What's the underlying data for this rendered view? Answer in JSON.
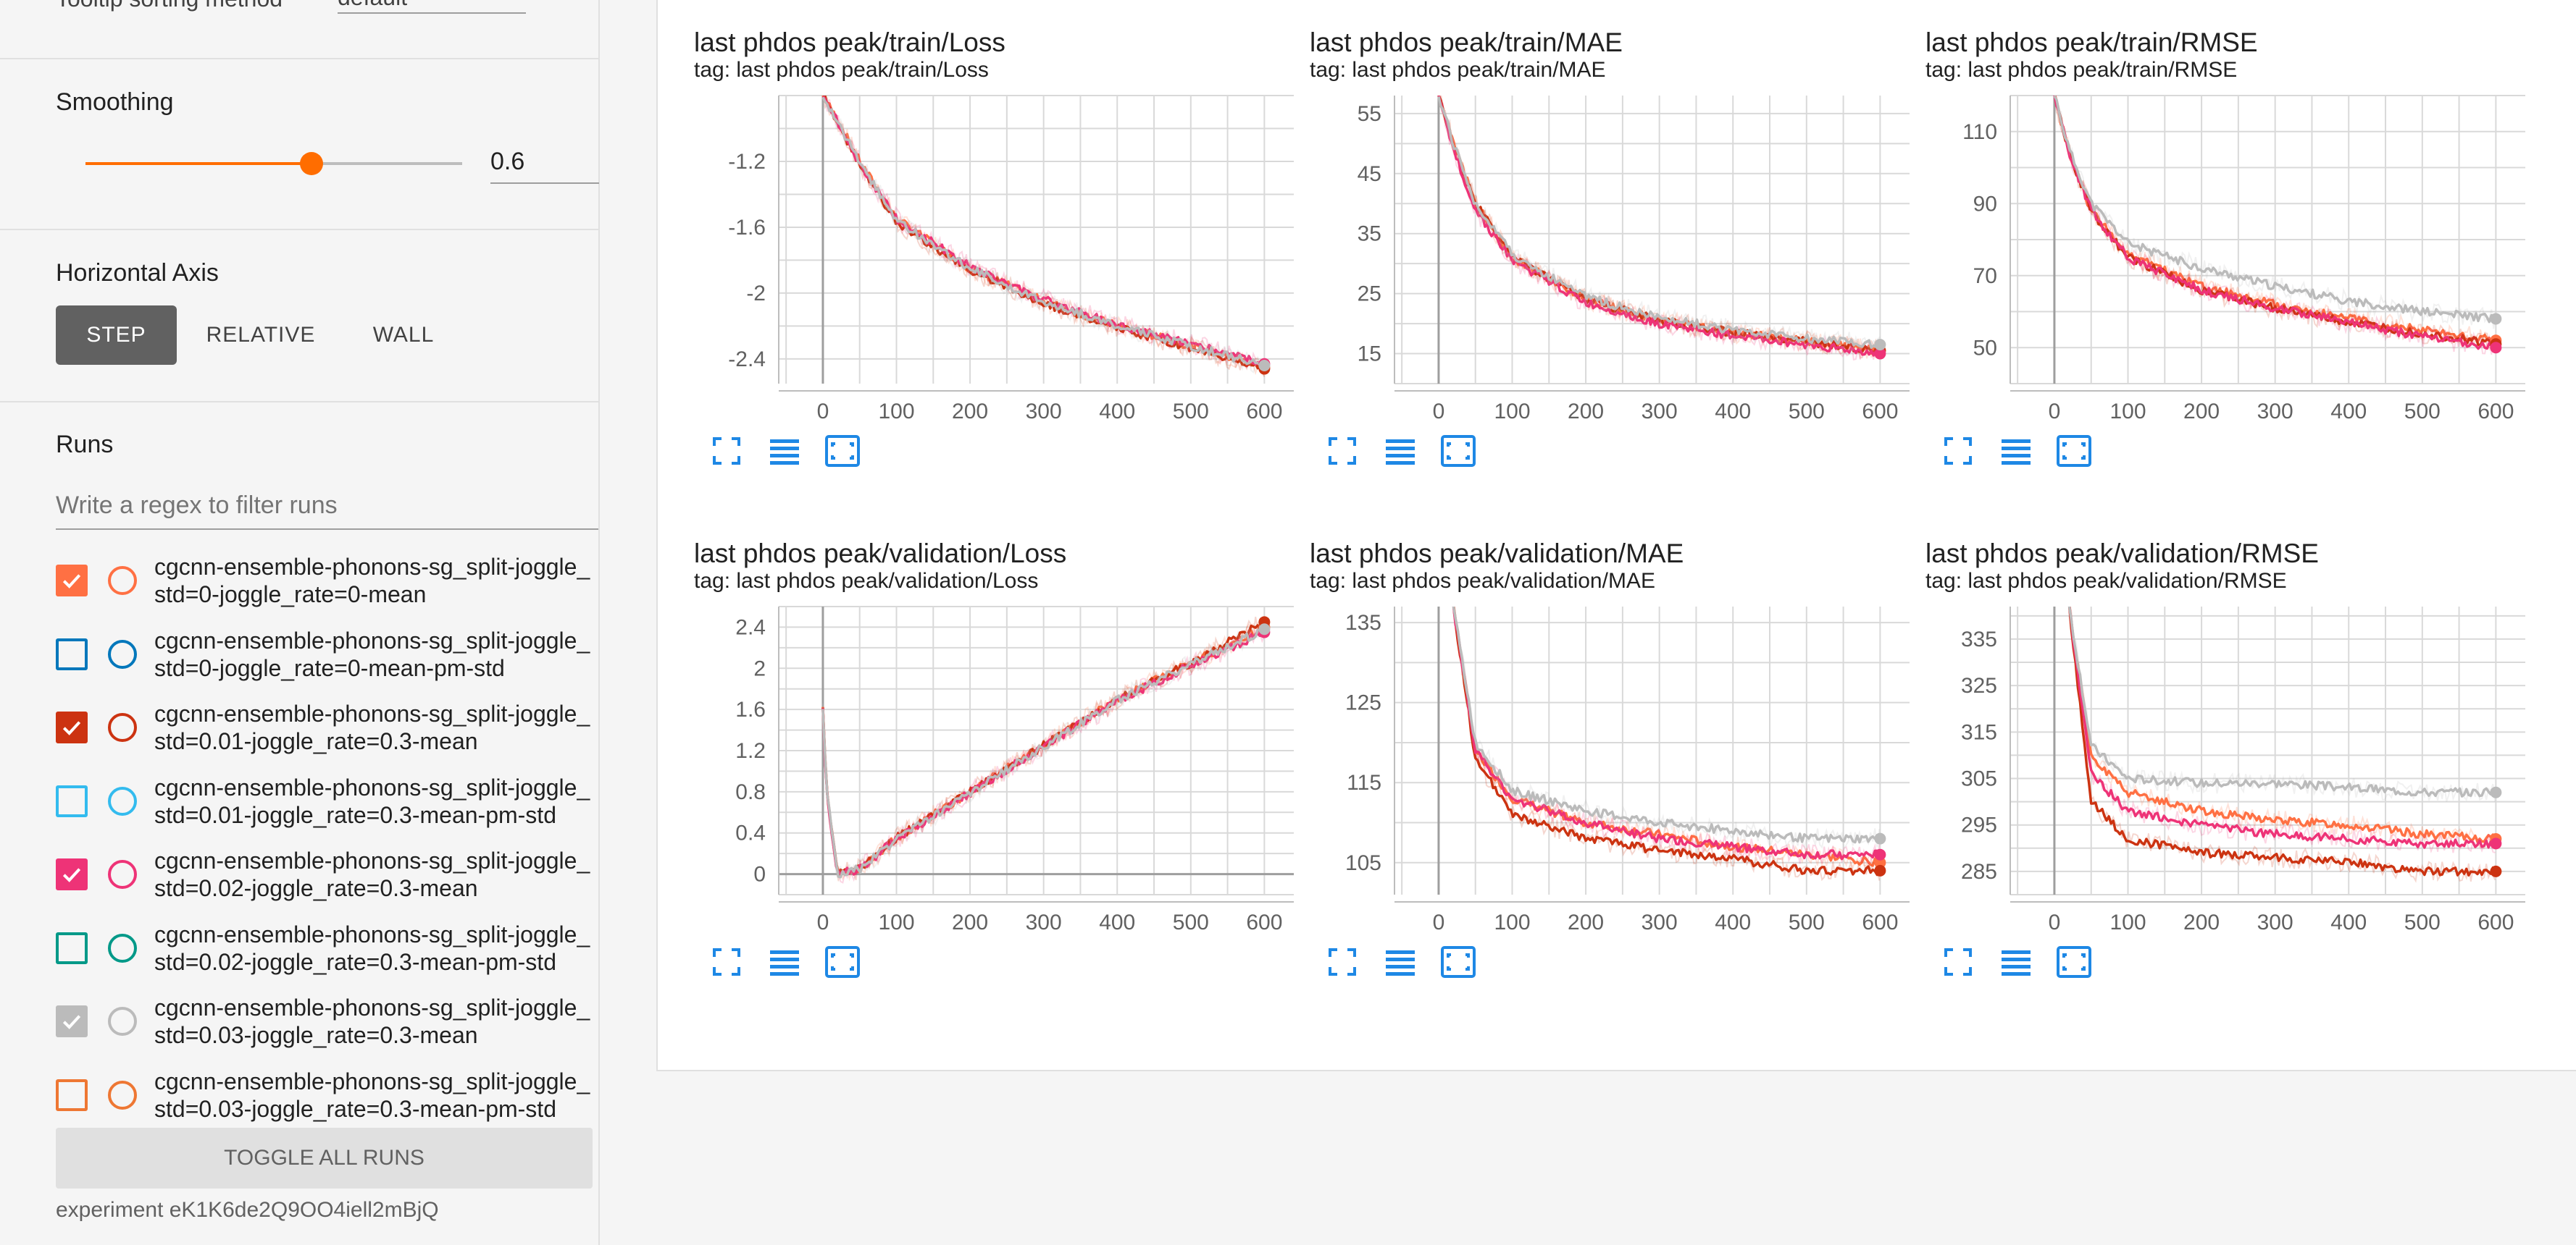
{
  "sidebar": {
    "tooltip_sorting": {
      "label": "Tooltip sorting method",
      "value": "default"
    },
    "smoothing": {
      "label": "Smoothing",
      "value": "0.6",
      "fraction": 0.6
    },
    "horizontal_axis": {
      "label": "Horizontal Axis",
      "options": [
        "STEP",
        "RELATIVE",
        "WALL"
      ],
      "selected": "STEP"
    },
    "runs": {
      "label": "Runs",
      "filter_placeholder": "Write a regex to filter runs",
      "items": [
        {
          "line1": "cgcnn-ensemble-phonons-sg_split-joggle_",
          "line2": "std=0-joggle_rate=0-mean",
          "checked": true,
          "color": "#ff7043"
        },
        {
          "line1": "cgcnn-ensemble-phonons-sg_split-joggle_",
          "line2": "std=0-joggle_rate=0-mean-pm-std",
          "checked": false,
          "color": "#0077bb"
        },
        {
          "line1": "cgcnn-ensemble-phonons-sg_split-joggle_",
          "line2": "std=0.01-joggle_rate=0.3-mean",
          "checked": true,
          "color": "#cc3311"
        },
        {
          "line1": "cgcnn-ensemble-phonons-sg_split-joggle_",
          "line2": "std=0.01-joggle_rate=0.3-mean-pm-std",
          "checked": false,
          "color": "#33bbee"
        },
        {
          "line1": "cgcnn-ensemble-phonons-sg_split-joggle_",
          "line2": "std=0.02-joggle_rate=0.3-mean",
          "checked": true,
          "color": "#ee3377"
        },
        {
          "line1": "cgcnn-ensemble-phonons-sg_split-joggle_",
          "line2": "std=0.02-joggle_rate=0.3-mean-pm-std",
          "checked": false,
          "color": "#009988"
        },
        {
          "line1": "cgcnn-ensemble-phonons-sg_split-joggle_",
          "line2": "std=0.03-joggle_rate=0.3-mean",
          "checked": true,
          "color": "#bbbbbb"
        },
        {
          "line1": "cgcnn-ensemble-phonons-sg_split-joggle_",
          "line2": "std=0.03-joggle_rate=0.3-mean-pm-std",
          "checked": false,
          "color": "#ee7733"
        }
      ]
    },
    "toggle_all_label": "TOGGLE ALL RUNS",
    "experiment": "experiment eK1K6de2Q9OO4iell2mBjQ"
  },
  "icons": {
    "fullscreen": "fullscreen-icon",
    "log_scale": "list-icon",
    "fit_domain": "fit-domain-icon"
  },
  "colors": {
    "accent": "#ff6d00",
    "icon_blue": "#1e88e5"
  },
  "chart_data": [
    {
      "title": "last phdos peak/train/Loss",
      "tag": "tag: last phdos peak/train/Loss",
      "type": "line",
      "xlim": [
        -60,
        640
      ],
      "ylim": [
        -2.55,
        -0.8
      ],
      "xticks": [
        0,
        100,
        200,
        300,
        400,
        500,
        600
      ],
      "yticks": [
        -1.2,
        -1.6,
        -2,
        -2.4
      ],
      "series": [
        {
          "color": "#ff7043",
          "x": [
            0,
            20,
            50,
            100,
            200,
            300,
            400,
            500,
            600
          ],
          "y": [
            -0.8,
            -0.95,
            -1.2,
            -1.55,
            -1.85,
            -2.05,
            -2.2,
            -2.32,
            -2.45
          ]
        },
        {
          "color": "#cc3311",
          "x": [
            0,
            20,
            50,
            100,
            200,
            300,
            400,
            500,
            600
          ],
          "y": [
            -0.8,
            -0.97,
            -1.22,
            -1.57,
            -1.86,
            -2.06,
            -2.21,
            -2.33,
            -2.46
          ]
        },
        {
          "color": "#ee3377",
          "x": [
            0,
            20,
            50,
            100,
            200,
            300,
            400,
            500,
            600
          ],
          "y": [
            -0.8,
            -0.96,
            -1.21,
            -1.55,
            -1.84,
            -2.04,
            -2.19,
            -2.31,
            -2.43
          ]
        },
        {
          "color": "#bbbbbb",
          "x": [
            0,
            20,
            50,
            100,
            200,
            300,
            400,
            500,
            600
          ],
          "y": [
            -0.8,
            -0.96,
            -1.21,
            -1.56,
            -1.85,
            -2.05,
            -2.2,
            -2.32,
            -2.44
          ]
        }
      ]
    },
    {
      "title": "last phdos peak/train/MAE",
      "tag": "tag: last phdos peak/train/MAE",
      "type": "line",
      "xlim": [
        -60,
        640
      ],
      "ylim": [
        10,
        58
      ],
      "xticks": [
        0,
        100,
        200,
        300,
        400,
        500,
        600
      ],
      "yticks": [
        55,
        45,
        35,
        25,
        15
      ],
      "series": [
        {
          "color": "#ff7043",
          "x": [
            0,
            20,
            50,
            100,
            200,
            300,
            400,
            500,
            600
          ],
          "y": [
            58,
            50,
            40,
            31,
            24,
            20.5,
            18.5,
            17,
            15.5
          ]
        },
        {
          "color": "#cc3311",
          "x": [
            0,
            20,
            50,
            100,
            200,
            300,
            400,
            500,
            600
          ],
          "y": [
            58,
            50,
            40,
            31,
            24,
            20.5,
            18.5,
            17,
            15.5
          ]
        },
        {
          "color": "#ee3377",
          "x": [
            0,
            20,
            50,
            100,
            200,
            300,
            400,
            500,
            600
          ],
          "y": [
            58,
            49,
            39,
            30.5,
            23.5,
            20,
            18,
            16.5,
            15
          ]
        },
        {
          "color": "#bbbbbb",
          "x": [
            0,
            20,
            50,
            100,
            200,
            300,
            400,
            500,
            600
          ],
          "y": [
            58,
            50,
            40,
            31.5,
            24.5,
            21,
            19,
            17.5,
            16.5
          ]
        }
      ]
    },
    {
      "title": "last phdos peak/train/RMSE",
      "tag": "tag: last phdos peak/train/RMSE",
      "type": "line",
      "xlim": [
        -60,
        640
      ],
      "ylim": [
        40,
        120
      ],
      "xticks": [
        0,
        100,
        200,
        300,
        400,
        500,
        600
      ],
      "yticks": [
        110,
        90,
        70,
        50
      ],
      "series": [
        {
          "color": "#ff7043",
          "x": [
            0,
            20,
            50,
            100,
            200,
            300,
            400,
            500,
            600
          ],
          "y": [
            120,
            104,
            88,
            76,
            67,
            62,
            58,
            55,
            52
          ]
        },
        {
          "color": "#cc3311",
          "x": [
            0,
            20,
            50,
            100,
            200,
            300,
            400,
            500,
            600
          ],
          "y": [
            120,
            104,
            88,
            75,
            66,
            61,
            57,
            54,
            51
          ]
        },
        {
          "color": "#ee3377",
          "x": [
            0,
            20,
            50,
            100,
            200,
            300,
            400,
            500,
            600
          ],
          "y": [
            120,
            104,
            88,
            75,
            66,
            61,
            57,
            53,
            50
          ]
        },
        {
          "color": "#bbbbbb",
          "x": [
            0,
            20,
            50,
            100,
            200,
            300,
            400,
            500,
            600
          ],
          "y": [
            120,
            105,
            90,
            79,
            72,
            67,
            63,
            60,
            58
          ]
        }
      ]
    },
    {
      "title": "last phdos peak/validation/Loss",
      "tag": "tag: last phdos peak/validation/Loss",
      "type": "line",
      "xlim": [
        -60,
        640
      ],
      "ylim": [
        -0.2,
        2.6
      ],
      "xticks": [
        0,
        100,
        200,
        300,
        400,
        500,
        600
      ],
      "yticks": [
        2.4,
        2,
        1.6,
        1.2,
        0.8,
        0.4,
        0
      ],
      "series": [
        {
          "color": "#ff7043",
          "x": [
            0,
            5,
            20,
            50,
            100,
            200,
            300,
            400,
            500,
            600
          ],
          "y": [
            1.6,
            0.8,
            0.0,
            0.05,
            0.35,
            0.8,
            1.25,
            1.7,
            2.05,
            2.4
          ]
        },
        {
          "color": "#cc3311",
          "x": [
            0,
            5,
            20,
            50,
            100,
            200,
            300,
            400,
            500,
            600
          ],
          "y": [
            1.6,
            0.8,
            0.0,
            0.05,
            0.35,
            0.8,
            1.25,
            1.7,
            2.05,
            2.45
          ]
        },
        {
          "color": "#ee3377",
          "x": [
            0,
            5,
            20,
            50,
            100,
            200,
            300,
            400,
            500,
            600
          ],
          "y": [
            1.6,
            0.8,
            0.0,
            0.05,
            0.34,
            0.79,
            1.24,
            1.68,
            2.03,
            2.35
          ]
        },
        {
          "color": "#bbbbbb",
          "x": [
            0,
            5,
            20,
            50,
            100,
            200,
            300,
            400,
            500,
            600
          ],
          "y": [
            1.6,
            0.8,
            0.0,
            0.05,
            0.34,
            0.79,
            1.24,
            1.69,
            2.04,
            2.38
          ]
        }
      ]
    },
    {
      "title": "last phdos peak/validation/MAE",
      "tag": "tag: last phdos peak/validation/MAE",
      "type": "line",
      "xlim": [
        -60,
        640
      ],
      "ylim": [
        101,
        137
      ],
      "xticks": [
        0,
        100,
        200,
        300,
        400,
        500,
        600
      ],
      "yticks": [
        135,
        125,
        115,
        105
      ],
      "series": [
        {
          "color": "#ff7043",
          "x": [
            20,
            50,
            100,
            200,
            300,
            400,
            500,
            600
          ],
          "y": [
            137,
            119,
            113,
            110,
            108.5,
            107,
            106,
            105
          ]
        },
        {
          "color": "#cc3311",
          "x": [
            20,
            50,
            100,
            200,
            300,
            400,
            500,
            600
          ],
          "y": [
            137,
            118,
            111,
            108,
            106.5,
            105.5,
            104,
            104
          ]
        },
        {
          "color": "#ee3377",
          "x": [
            20,
            50,
            100,
            200,
            300,
            400,
            500,
            600
          ],
          "y": [
            137,
            119,
            113,
            110,
            108,
            107,
            106,
            106
          ]
        },
        {
          "color": "#bbbbbb",
          "x": [
            20,
            50,
            100,
            200,
            300,
            400,
            500,
            600
          ],
          "y": [
            137,
            120,
            114,
            111.5,
            110,
            109,
            108,
            108
          ]
        }
      ]
    },
    {
      "title": "last phdos peak/validation/RMSE",
      "tag": "tag: last phdos peak/validation/RMSE",
      "type": "line",
      "xlim": [
        -60,
        640
      ],
      "ylim": [
        280,
        342
      ],
      "xticks": [
        0,
        100,
        200,
        300,
        400,
        500,
        600
      ],
      "yticks": [
        335,
        325,
        315,
        305,
        295,
        285
      ],
      "series": [
        {
          "color": "#ff7043",
          "x": [
            20,
            50,
            100,
            200,
            300,
            400,
            500,
            600
          ],
          "y": [
            342,
            310,
            302,
            298,
            296,
            295,
            293,
            292
          ]
        },
        {
          "color": "#cc3311",
          "x": [
            20,
            50,
            100,
            200,
            300,
            400,
            500,
            600
          ],
          "y": [
            342,
            300,
            292,
            289,
            288,
            287,
            285,
            285
          ]
        },
        {
          "color": "#ee3377",
          "x": [
            20,
            50,
            100,
            200,
            300,
            400,
            500,
            600
          ],
          "y": [
            342,
            306,
            298,
            295,
            293,
            292,
            291,
            291
          ]
        },
        {
          "color": "#bbbbbb",
          "x": [
            20,
            50,
            100,
            200,
            300,
            400,
            500,
            600
          ],
          "y": [
            342,
            312,
            305,
            304,
            304,
            303,
            302,
            302
          ]
        }
      ]
    }
  ]
}
